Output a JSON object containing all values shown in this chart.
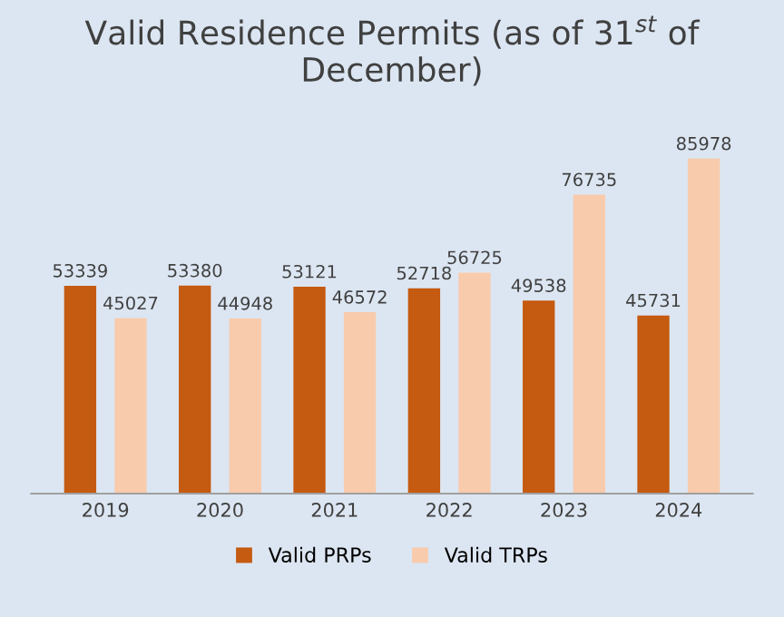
{
  "chart_data": {
    "type": "bar",
    "title": "Valid Residence Permits (as of 31$^{st}$ of December)",
    "categories": [
      "2019",
      "2020",
      "2021",
      "2022",
      "2023",
      "2024"
    ],
    "series": [
      {
        "name": "Valid PRPs",
        "color": "#c55a11",
        "values": [
          53339,
          53380,
          53121,
          52718,
          49538,
          45731
        ]
      },
      {
        "name": "Valid TRPs",
        "color": "#f8cbad",
        "values": [
          45027,
          44948,
          46572,
          56725,
          76735,
          85978
        ]
      }
    ],
    "data_labels": true,
    "grid": false,
    "legend": "bottom"
  }
}
